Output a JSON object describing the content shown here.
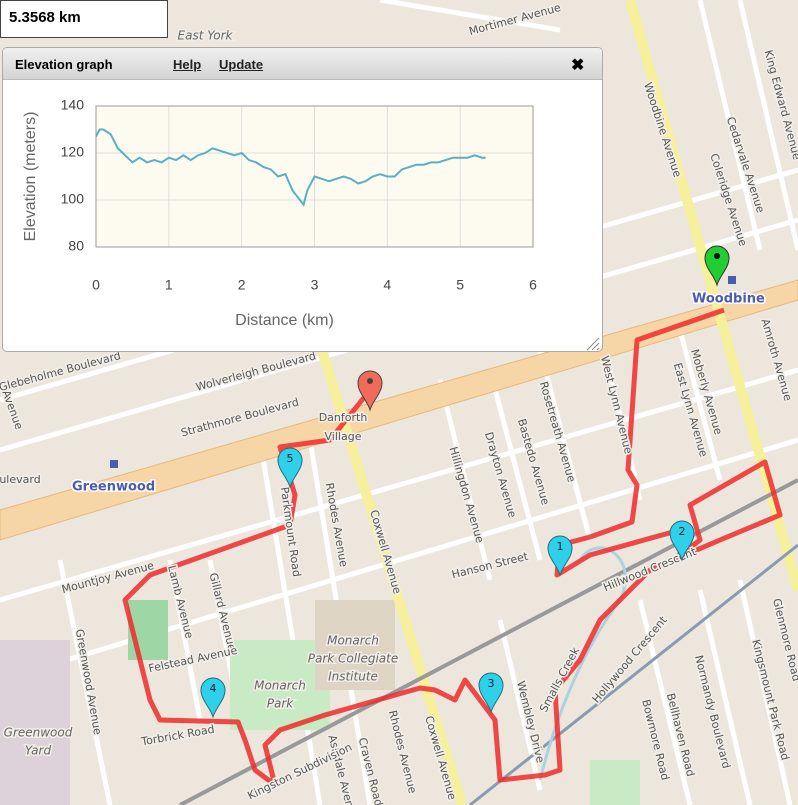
{
  "distance": "5.3568 km",
  "panel": {
    "title": "Elevation graph",
    "links": [
      "Help",
      "Update"
    ],
    "close": "✖"
  },
  "chart_data": {
    "type": "line",
    "x_label": "Distance (km)",
    "y_label": "Elevation (meters)",
    "x": [
      0,
      0.05,
      0.1,
      0.2,
      0.3,
      0.4,
      0.5,
      0.6,
      0.7,
      0.8,
      0.9,
      1.0,
      1.1,
      1.2,
      1.3,
      1.4,
      1.5,
      1.6,
      1.7,
      1.8,
      1.9,
      2.0,
      2.1,
      2.2,
      2.3,
      2.4,
      2.5,
      2.6,
      2.7,
      2.8,
      2.85,
      2.9,
      3.0,
      3.1,
      3.2,
      3.3,
      3.4,
      3.5,
      3.6,
      3.7,
      3.8,
      3.9,
      4.0,
      4.1,
      4.2,
      4.3,
      4.4,
      4.5,
      4.6,
      4.7,
      4.8,
      4.9,
      5.0,
      5.1,
      5.2,
      5.3,
      5.35
    ],
    "series": [
      {
        "color": "#5aafc4",
        "values": [
          127,
          130,
          130,
          128,
          122,
          119,
          116,
          118,
          116,
          117,
          116,
          118,
          117,
          119,
          117,
          119,
          120,
          122,
          121,
          120,
          119,
          120,
          117,
          116,
          114,
          113,
          110,
          111,
          104,
          100,
          98,
          104,
          110,
          109,
          108,
          109,
          110,
          109,
          107,
          108,
          110,
          111,
          110,
          110,
          113,
          114,
          115,
          115,
          116,
          116,
          117,
          118,
          118,
          118,
          119,
          118,
          118
        ]
      }
    ],
    "xlim": [
      0,
      6
    ],
    "ylim": [
      80,
      140
    ],
    "xticks": [
      0,
      1,
      2,
      3,
      4,
      5,
      6
    ],
    "yticks": [
      80,
      100,
      120,
      140
    ],
    "grid": true
  },
  "map": {
    "labels": [
      "Mortimer Avenue",
      "Woodbine Avenue",
      "Cedarvale Avenue",
      "Coleridge Avenue",
      "King Edward Avenue",
      "Glebeholme Boulevard",
      "Wolverleigh Boulevard",
      "Strathmore Boulevard",
      "Danforth",
      "Village",
      "Parkmount Road",
      "Rhodes Avenue",
      "Coxwell Avenue",
      "Hillingdon Avenue",
      "Drayton Avenue",
      "Bastedo Avenue",
      "Rosetreath Avenue",
      "West Lynn Avenue",
      "East Lynn Avenue",
      "Moberly Avenue",
      "Amroth Avenue",
      "Hanson Street",
      "Mountjoy Avenue",
      "Lamb Avenue",
      "Gillard Avenue",
      "Greenwood Avenue",
      "Felstead Avenue",
      "Torbrick Road",
      "Monarch",
      "Park",
      "Monarch",
      "Park Collegiate",
      "Institute",
      "Greenwood",
      "Yard",
      "Coxwell Avenue",
      "Rhodes Avenue",
      "Craven Road",
      "Ashdale Avenue",
      "Wembley Drive",
      "Hollywood Crescent",
      "Hillwood Crescent",
      "Smalls Creek",
      "Kingsmount Park Road",
      "Normandy Boulevard",
      "Bellhaven Road",
      "Bowmore Road",
      "Glenmore Road",
      "Kingston Subdivision",
      "East York",
      "Avenue",
      "ulevard"
    ],
    "stations": [
      "Greenwood",
      "Woodbine"
    ],
    "markers": [
      "1",
      "2",
      "3",
      "4",
      "5"
    ]
  }
}
